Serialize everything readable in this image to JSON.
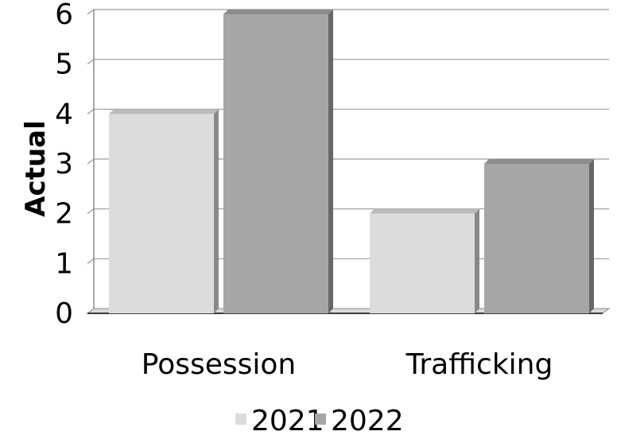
{
  "chart_data": {
    "type": "bar",
    "title": "",
    "xlabel": "",
    "ylabel": "Actual",
    "categories": [
      "Possession",
      "Trafficking"
    ],
    "series": [
      {
        "name": "2021",
        "values": [
          4,
          2
        ],
        "color": "#dcdcdc"
      },
      {
        "name": "2022",
        "values": [
          6,
          3
        ],
        "color": "#a6a6a6"
      }
    ],
    "ylim": [
      0,
      6
    ],
    "yticks": [
      "0",
      "1",
      "2",
      "3",
      "4",
      "5",
      "6"
    ],
    "grid": true,
    "legend_position": "bottom"
  }
}
